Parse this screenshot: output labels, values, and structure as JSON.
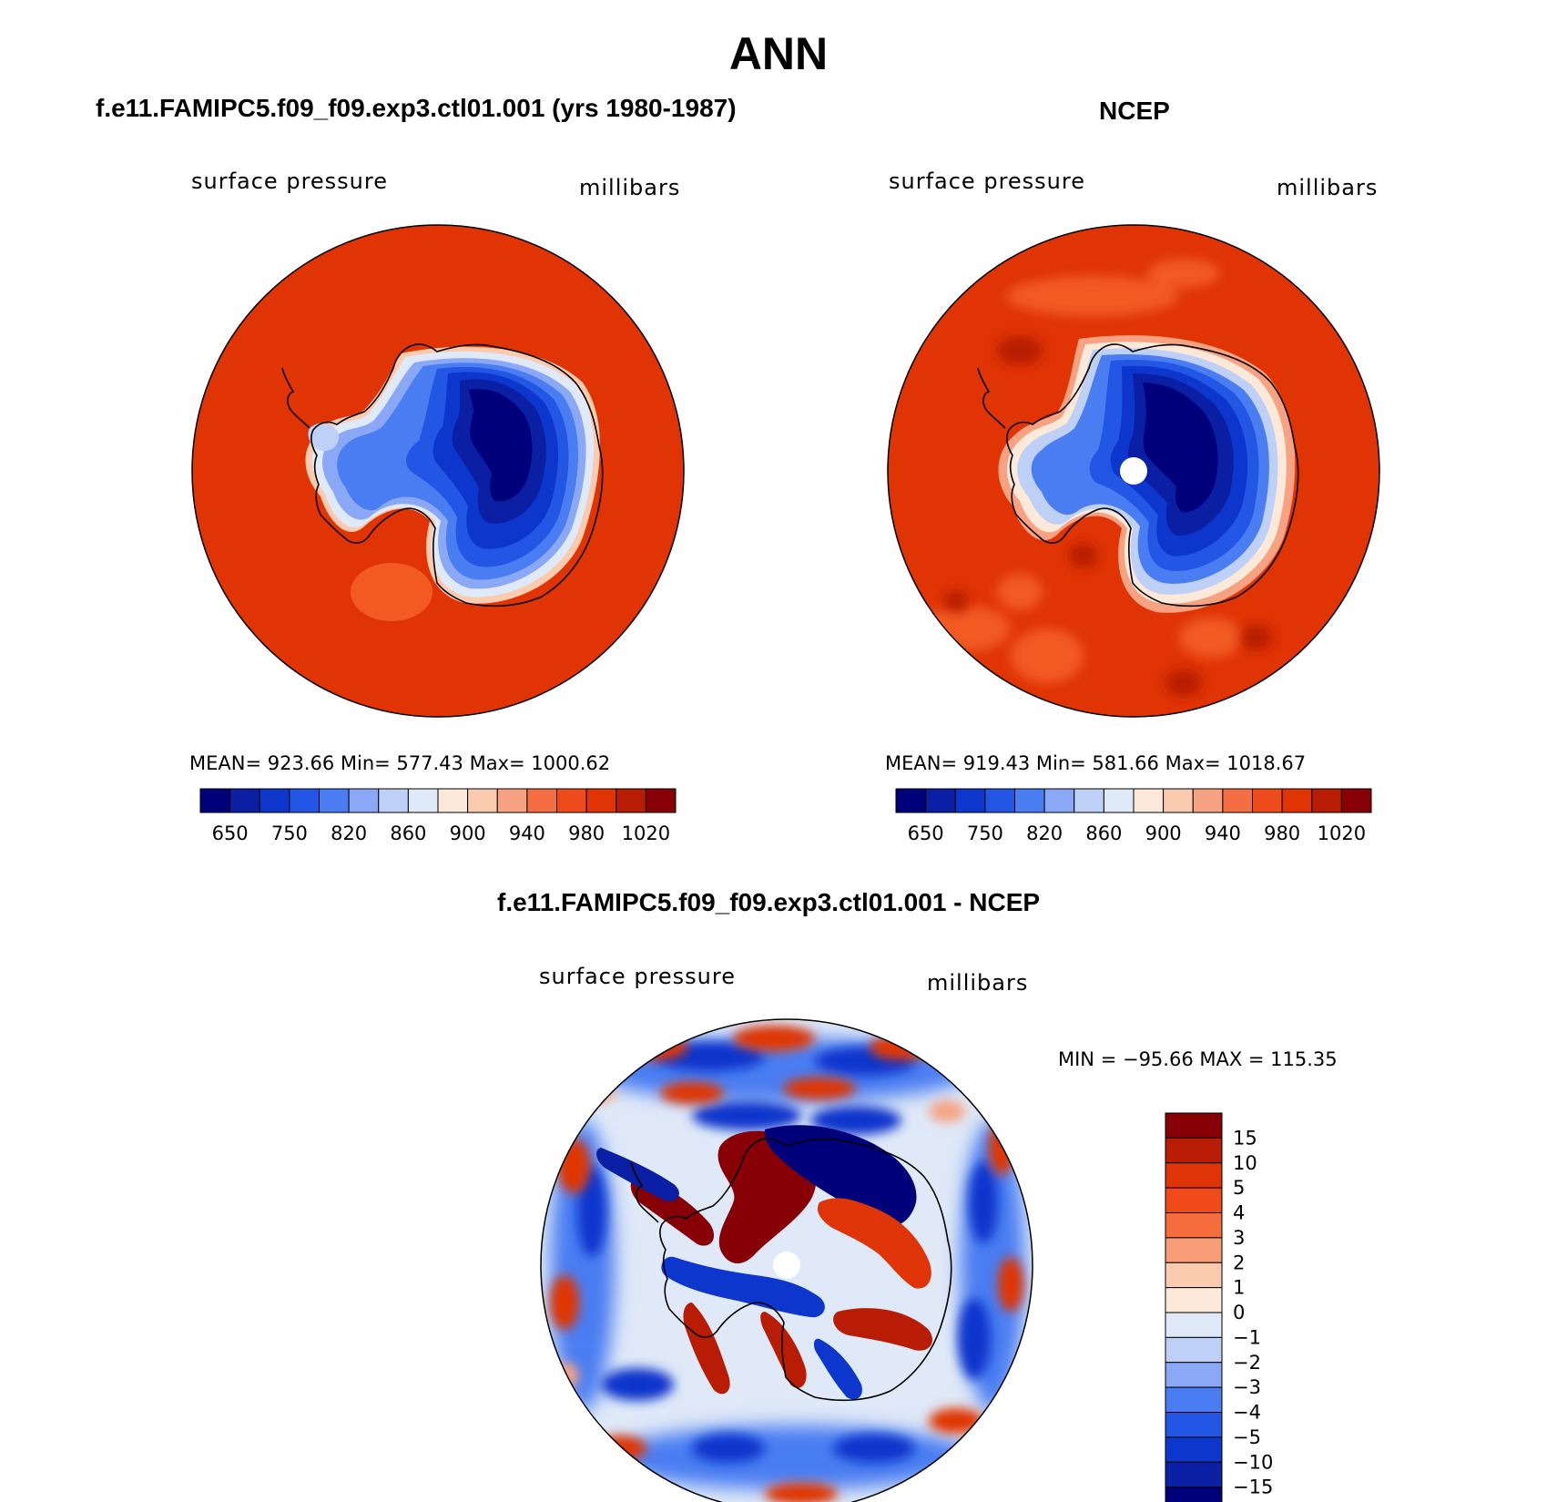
{
  "main_title": "ANN",
  "panels": [
    {
      "title": "f.e11.FAMIPC5.f09_f09.exp3.ctl01.001 (yrs 1980-1987)",
      "variable": "surface pressure",
      "units": "millibars",
      "stats": "MEAN= 923.66   Min= 577.43   Max= 1000.62"
    },
    {
      "title": "NCEP",
      "variable": "surface pressure",
      "units": "millibars",
      "stats": "MEAN= 919.43   Min= 581.66   Max= 1018.67"
    },
    {
      "title": "f.e11.FAMIPC5.f09_f09.exp3.ctl01.001 - NCEP",
      "variable": "surface pressure",
      "units": "millibars",
      "stats": "MIN = −95.66  MAX = 115.35"
    }
  ],
  "abs_colorbar": {
    "colors": [
      "#00007a",
      "#0a1fa3",
      "#0d36cc",
      "#2456e6",
      "#4a7df2",
      "#8aa8f5",
      "#bfd0f7",
      "#dfe9f8",
      "#fde9da",
      "#fbcbb0",
      "#f7a282",
      "#f36f43",
      "#ee4b1c",
      "#e03404",
      "#b81c05",
      "#860006"
    ],
    "labels": [
      "650",
      "750",
      "820",
      "860",
      "900",
      "940",
      "980",
      "1020"
    ]
  },
  "diff_colorbar": {
    "colors": [
      "#860006",
      "#b81c05",
      "#de3408",
      "#f04a1a",
      "#f56d3c",
      "#f79e79",
      "#fbcbb0",
      "#fde9da",
      "#dfe9f8",
      "#bfd0f7",
      "#8aa8f5",
      "#4a7df2",
      "#2456e6",
      "#0d36cc",
      "#0a1fa3",
      "#00007a"
    ],
    "labels": [
      "15",
      "10",
      "5",
      "4",
      "3",
      "2",
      "1",
      "0",
      "−1",
      "−2",
      "−3",
      "−4",
      "−5",
      "−10",
      "−15"
    ]
  }
}
